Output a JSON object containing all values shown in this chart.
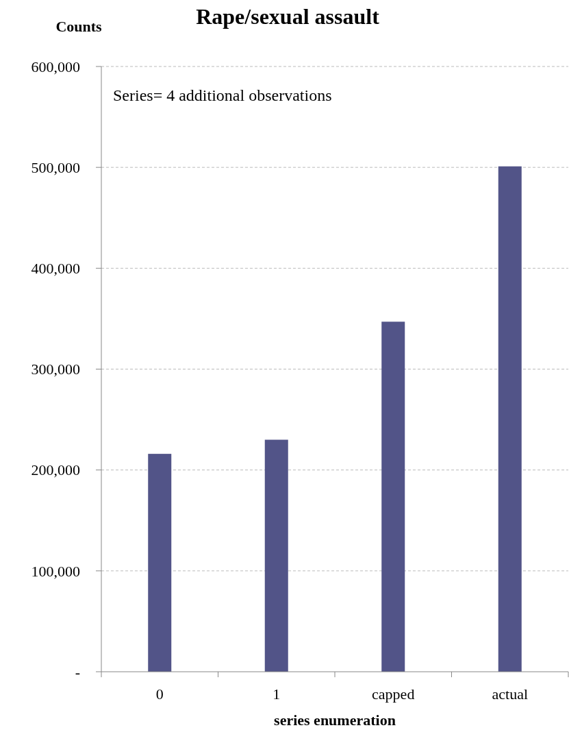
{
  "chart_data": {
    "type": "bar",
    "title": "Rape/sexual assault",
    "ylabel": "Counts",
    "xlabel": "series enumeration",
    "categories": [
      "0",
      "1",
      "capped",
      "actual"
    ],
    "values": [
      216000,
      230000,
      347000,
      501000
    ],
    "color": "#525488",
    "ylim": [
      0,
      600000
    ],
    "yticks": [
      {
        "value": 0,
        "label": "-"
      },
      {
        "value": 100000,
        "label": "100,000"
      },
      {
        "value": 200000,
        "label": "200,000"
      },
      {
        "value": 300000,
        "label": "300,000"
      },
      {
        "value": 400000,
        "label": "400,000"
      },
      {
        "value": 500000,
        "label": "500,000"
      },
      {
        "value": 600000,
        "label": "600,000"
      }
    ],
    "grid": "y",
    "annotations": [
      "Series= 4 additional observations"
    ]
  }
}
